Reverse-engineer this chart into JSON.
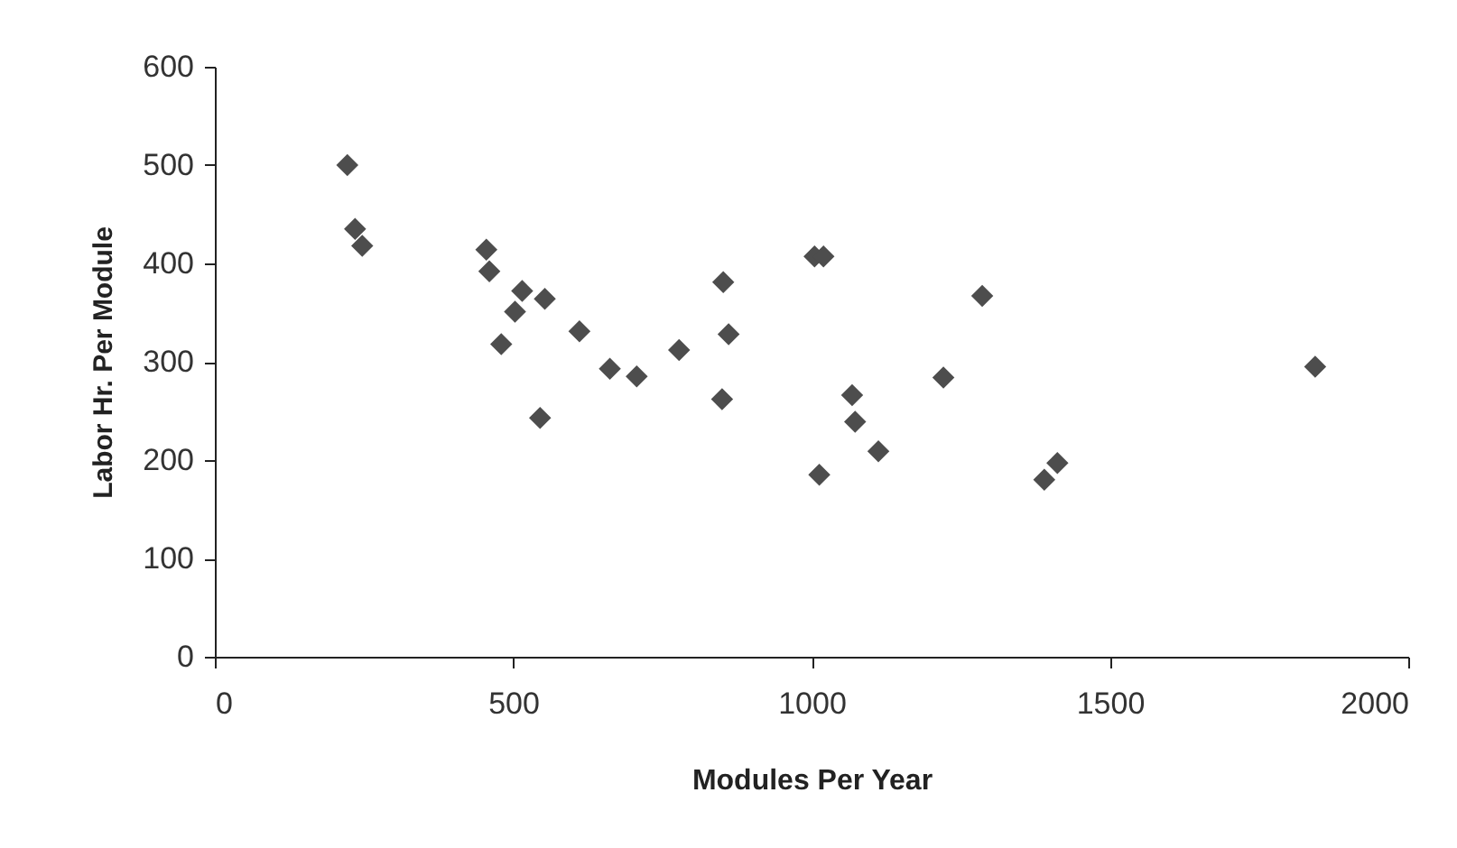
{
  "chart_data": {
    "type": "scatter",
    "xlabel": "Modules Per Year",
    "ylabel": "Labor Hr. Per Module",
    "xlim": [
      0,
      2000
    ],
    "xticks": [
      0,
      500,
      1000,
      1500,
      2000
    ],
    "ylim": [
      0,
      600
    ],
    "yticks": [
      0,
      100,
      200,
      300,
      400,
      500,
      600
    ],
    "grid": false,
    "marker": "diamond",
    "series": [
      {
        "color": "#4d4d4d",
        "x": [
          222,
          235,
          247,
          455,
          460,
          515,
          503,
          553,
          480,
          545,
          611,
          662,
          707,
          778,
          852,
          861,
          850,
          1005,
          1020,
          1013,
          1286,
          1221,
          1068,
          1073,
          1112,
          1412,
          1390,
          1844
        ],
        "values": [
          500,
          435,
          418,
          414,
          392,
          372,
          351,
          364,
          318,
          243,
          331,
          293,
          285,
          312,
          381,
          328,
          262,
          407,
          407,
          185,
          367,
          284,
          266,
          239,
          209,
          197,
          180,
          295
        ]
      }
    ]
  }
}
